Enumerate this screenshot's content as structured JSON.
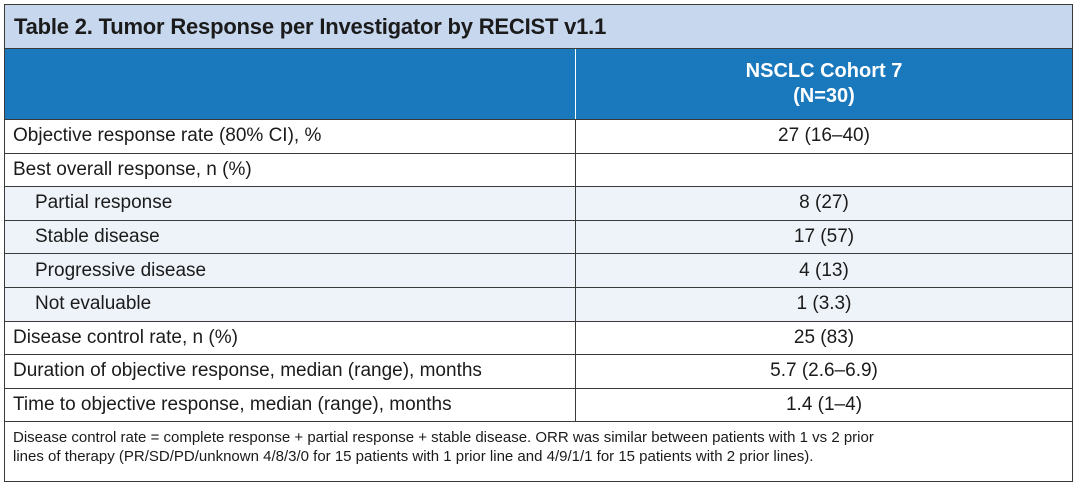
{
  "title": "Table 2. Tumor Response per Investigator by RECIST v1.1",
  "column_header": {
    "line1": "NSCLC Cohort 7",
    "line2": "(N=30)"
  },
  "rows": [
    {
      "label": "Objective response rate (80% CI), %",
      "value": "27 (16–40)"
    },
    {
      "label": "Best overall response, n (%)",
      "value": ""
    },
    {
      "label": "Partial response",
      "value": "8 (27)"
    },
    {
      "label": "Stable disease",
      "value": "17 (57)"
    },
    {
      "label": "Progressive disease",
      "value": "4 (13)"
    },
    {
      "label": "Not evaluable",
      "value": "1 (3.3)"
    },
    {
      "label": "Disease control rate, n (%)",
      "value": "25 (83)"
    },
    {
      "label": "Duration of objective response, median (range), months",
      "value": "5.7 (2.6–6.9)"
    },
    {
      "label": "Time to objective response, median (range), months",
      "value": "1.4 (1–4)"
    }
  ],
  "footnote": {
    "line1": "Disease control rate = complete response + partial response + stable disease. ORR was similar between patients with 1 vs 2 prior",
    "line2": "lines of therapy (PR/SD/PD/unknown 4/8/3/0 for 15 patients with 1 prior line and 4/9/1/1 for 15 patients with 2 prior lines)."
  },
  "colors": {
    "title_background": "#c6d7ee",
    "header_background": "#1a79bd",
    "subrow_background": "#eef3fa"
  }
}
